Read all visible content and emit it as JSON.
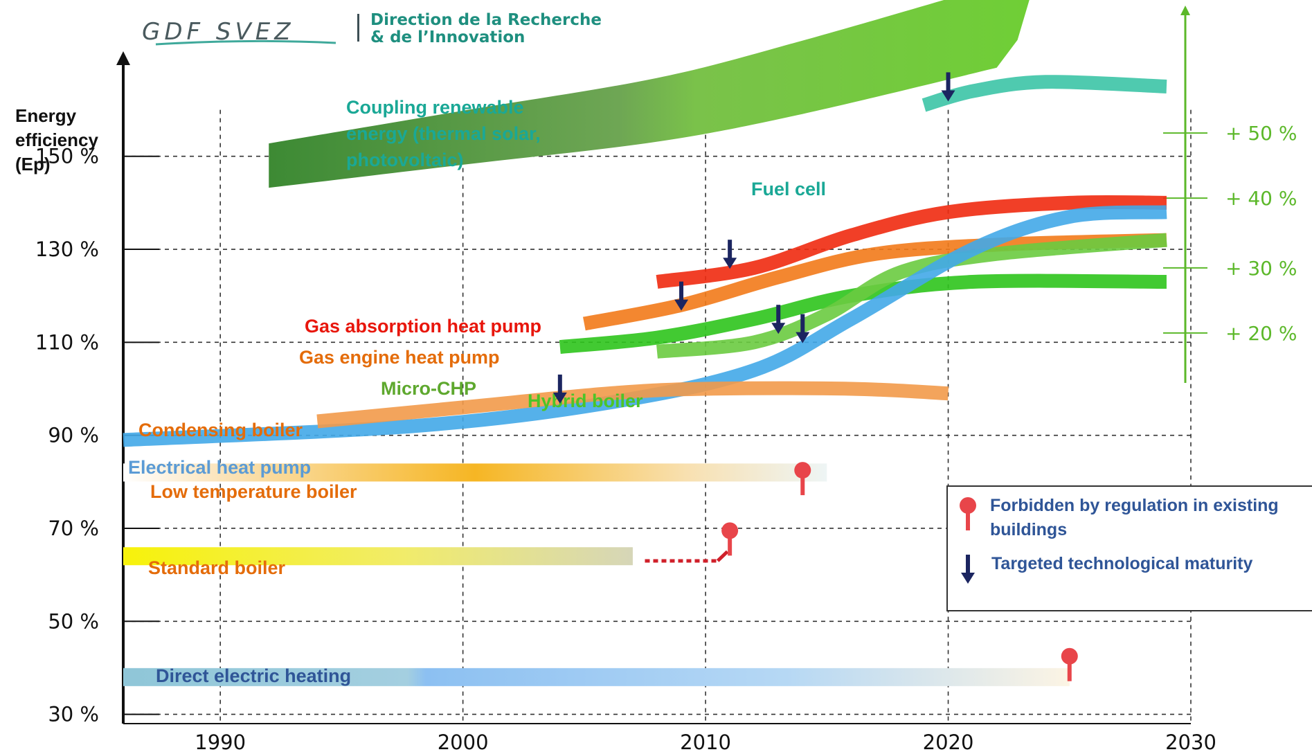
{
  "header": {
    "logo": "GDF SVEZ",
    "dept_line1": "Direction de la Recherche",
    "dept_line2": "& de l’Innovation"
  },
  "chart_data": {
    "type": "line",
    "ylabel_lines": [
      "Energy",
      "efficiency",
      "(Ep)"
    ],
    "xlim": [
      1986,
      2030
    ],
    "ylim": [
      28,
      172
    ],
    "x_ticks": [
      1990,
      2000,
      2010,
      2020,
      2030
    ],
    "x_tick_labels": [
      "1990",
      "2000",
      "2010",
      "2020",
      "2030"
    ],
    "y_ticks": [
      30,
      50,
      70,
      90,
      110,
      130,
      150
    ],
    "y_tick_labels": [
      "30 %",
      "50 %",
      "70 %",
      "90 %",
      "110 %",
      "130 %",
      "150 %"
    ],
    "right_axis": {
      "labels": [
        "+ 50 %",
        "+ 40 %",
        "+ 30 %",
        "+ 20 %"
      ],
      "values": [
        155,
        141,
        126,
        112
      ],
      "color": "#5cb82a"
    },
    "series": [
      {
        "name": "Coupling renewable energy (thermal solar, photovoltaic)",
        "label_lines": [
          "Coupling renewable",
          "energy (thermal solar,",
          "photovoltaic)"
        ],
        "label_color": "#1aa896",
        "kind": "arrow",
        "x": [
          1992,
          2000,
          2008,
          2014,
          2022
        ],
        "y": [
          148,
          154,
          160,
          167,
          178
        ],
        "color": "#5cb82a"
      },
      {
        "name": "Fuel cell",
        "label_color": "#1aa896",
        "color": "#3cc4a6",
        "x": [
          2019,
          2021,
          2024,
          2029
        ],
        "y": [
          161,
          164,
          166,
          165
        ]
      },
      {
        "name": "Gas absorption heat pump",
        "label_color": "#e8160c",
        "color": "#f02a10",
        "x": [
          2008,
          2012,
          2016,
          2020,
          2025,
          2029
        ],
        "y": [
          123,
          126,
          133,
          138,
          140,
          140
        ]
      },
      {
        "name": "Gas engine heat pump",
        "label_color": "#e46c0a",
        "color": "#f27a1a",
        "x": [
          2005,
          2009,
          2013,
          2017,
          2022,
          2029
        ],
        "y": [
          114,
          118,
          124,
          129,
          131,
          132
        ]
      },
      {
        "name": "Micro-CHP",
        "label_color": "#5ea82e",
        "color": "#2ec41c",
        "x": [
          2004,
          2008,
          2012,
          2016,
          2021,
          2029
        ],
        "y": [
          109,
          111,
          115,
          120,
          123,
          123
        ]
      },
      {
        "name": "Hybrid boiler",
        "label_color": "#4cc428",
        "color": "#6acb40",
        "x": [
          2008,
          2012,
          2015,
          2018,
          2022,
          2029
        ],
        "y": [
          108,
          110,
          116,
          125,
          129,
          132
        ]
      },
      {
        "name": "Electrical heat pump",
        "label_color": "#5b9bd5",
        "color": "#42a8e8",
        "x": [
          1986,
          1998,
          2006,
          2012,
          2016,
          2021,
          2025,
          2029
        ],
        "y": [
          89,
          92,
          97,
          104,
          115,
          130,
          137,
          138
        ]
      },
      {
        "name": "Condensing boiler",
        "label_color": "#e46c0a",
        "color": "#f29a4a",
        "x": [
          1994,
          2000,
          2006,
          2010,
          2016,
          2020
        ],
        "y": [
          93,
          96,
          99,
          100,
          100,
          99
        ]
      },
      {
        "name": "Low temperature boiler",
        "label_color": "#e46c0a",
        "color": "#f5b52a",
        "x": [
          1986,
          2015
        ],
        "y": [
          82,
          82
        ],
        "kind": "band"
      },
      {
        "name": "Standard boiler",
        "label_color": "#e46c0a",
        "color": "#f5f00a",
        "x": [
          1986,
          2007
        ],
        "y": [
          64,
          64
        ],
        "kind": "band"
      },
      {
        "name": "Direct electric heating",
        "label_color": "#2f5597",
        "color": "#8cc2f0",
        "x": [
          1986,
          2025
        ],
        "y": [
          38,
          38
        ],
        "kind": "band"
      }
    ],
    "maturity_markers": [
      {
        "x": 2020,
        "y": 163
      },
      {
        "x": 2011,
        "y": 127
      },
      {
        "x": 2009,
        "y": 118
      },
      {
        "x": 2013,
        "y": 113
      },
      {
        "x": 2014,
        "y": 111
      },
      {
        "x": 2004,
        "y": 98
      }
    ],
    "regulation_markers": [
      {
        "x": 2014,
        "y": 81
      },
      {
        "x": 2011,
        "y": 68
      },
      {
        "x": 2025,
        "y": 41
      }
    ],
    "legend": {
      "placement": "right",
      "items": [
        {
          "symbol": "regulation",
          "label_lines": [
            "Forbidden by regulation in existing",
            "buildings"
          ]
        },
        {
          "symbol": "maturity",
          "label_lines": [
            "Targeted technological maturity"
          ]
        }
      ]
    }
  }
}
